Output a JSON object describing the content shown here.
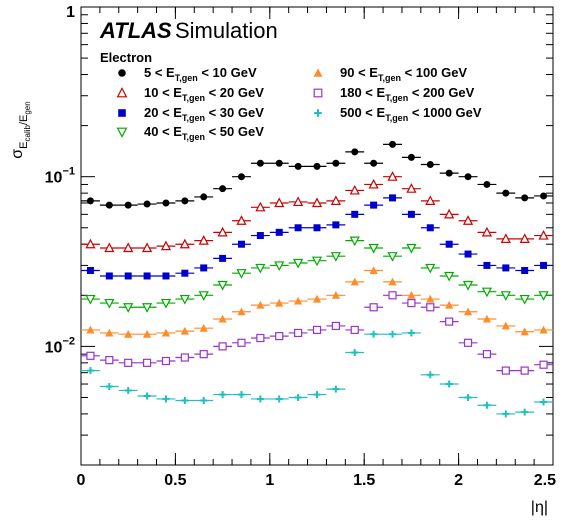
{
  "chart_data": {
    "type": "scatter",
    "title": "",
    "annotation": {
      "experiment": "ATLAS",
      "label": "Simulation",
      "particle": "Electron"
    },
    "xlabel": "|η|",
    "ylabel": "σ_{E_calib}/E_gen",
    "ylabel_main": "σ",
    "ylabel_sub": "E",
    "ylabel_subsub": "calib",
    "ylabel_over": "/E",
    "ylabel_gen": "gen",
    "xlim": [
      0,
      2.5
    ],
    "ylim": [
      0.002,
      1
    ],
    "yscale": "log",
    "x_ticks": [
      "0",
      "0.5",
      "1",
      "1.5",
      "2",
      "2.5"
    ],
    "y_ticks": [
      {
        "value": 1,
        "label": "1"
      },
      {
        "value": 0.1,
        "label": "10",
        "exp": "−1"
      },
      {
        "value": 0.01,
        "label": "10",
        "exp": "−2"
      }
    ],
    "x_bin_half_width": 0.05,
    "x": [
      0.05,
      0.15,
      0.25,
      0.35,
      0.45,
      0.55,
      0.65,
      0.75,
      0.85,
      0.95,
      1.05,
      1.15,
      1.25,
      1.35,
      1.45,
      1.55,
      1.65,
      1.75,
      1.85,
      1.95,
      2.05,
      2.15,
      2.25,
      2.35,
      2.45
    ],
    "series": [
      {
        "name": "5 < E_T,gen < 10 GeV",
        "prefix": "5 < E",
        "low": "5",
        "high": "10",
        "marker": "circle",
        "color": "#000000",
        "values": [
          0.072,
          0.068,
          0.068,
          0.069,
          0.07,
          0.072,
          0.076,
          0.085,
          0.1,
          0.12,
          0.12,
          0.115,
          0.115,
          0.12,
          0.14,
          0.12,
          0.155,
          0.13,
          0.118,
          0.105,
          0.1,
          0.09,
          0.08,
          0.075,
          0.077
        ]
      },
      {
        "name": "10 < E_T,gen < 20 GeV",
        "prefix": "10 < E",
        "low": "10",
        "high": "20",
        "marker": "triangle-up-open",
        "color": "#cc0000",
        "values": [
          0.04,
          0.038,
          0.038,
          0.038,
          0.039,
          0.04,
          0.042,
          0.047,
          0.055,
          0.066,
          0.07,
          0.071,
          0.07,
          0.072,
          0.083,
          0.09,
          0.1,
          0.085,
          0.072,
          0.06,
          0.055,
          0.047,
          0.043,
          0.043,
          0.045
        ]
      },
      {
        "name": "20 < E_T,gen < 30 GeV",
        "prefix": "20 < E",
        "low": "20",
        "high": "30",
        "marker": "square",
        "color": "#0000cc",
        "values": [
          0.028,
          0.026,
          0.026,
          0.026,
          0.026,
          0.027,
          0.029,
          0.033,
          0.04,
          0.045,
          0.047,
          0.05,
          0.05,
          0.052,
          0.06,
          0.068,
          0.075,
          0.06,
          0.05,
          0.04,
          0.035,
          0.03,
          0.029,
          0.028,
          0.03
        ]
      },
      {
        "name": "40 < E_T,gen < 50 GeV",
        "prefix": "40 < E",
        "low": "40",
        "high": "50",
        "marker": "triangle-down-open",
        "color": "#00aa00",
        "values": [
          0.019,
          0.018,
          0.017,
          0.017,
          0.018,
          0.019,
          0.02,
          0.023,
          0.027,
          0.029,
          0.03,
          0.031,
          0.032,
          0.034,
          0.042,
          0.038,
          0.034,
          0.038,
          0.029,
          0.026,
          0.023,
          0.021,
          0.02,
          0.019,
          0.02
        ]
      },
      {
        "name": "90 < E_T,gen < 100 GeV",
        "prefix": "90 < E",
        "low": "90",
        "high": "100",
        "marker": "triangle-up",
        "color": "#ff8c2a",
        "values": [
          0.0125,
          0.012,
          0.0118,
          0.0118,
          0.012,
          0.0123,
          0.0128,
          0.0145,
          0.016,
          0.0175,
          0.018,
          0.0185,
          0.019,
          0.02,
          0.024,
          0.028,
          0.024,
          0.02,
          0.019,
          0.0175,
          0.016,
          0.0145,
          0.0132,
          0.0122,
          0.0125
        ]
      },
      {
        "name": "180 < E_T,gen < 200 GeV",
        "prefix": "180 < E",
        "low": "180",
        "high": "200",
        "marker": "square-open",
        "color": "#9933cc",
        "values": [
          0.0088,
          0.0083,
          0.008,
          0.008,
          0.0082,
          0.0086,
          0.009,
          0.01,
          0.0105,
          0.0112,
          0.0115,
          0.012,
          0.0125,
          0.0132,
          0.0125,
          0.017,
          0.02,
          0.018,
          0.017,
          0.014,
          0.0105,
          0.009,
          0.0072,
          0.0072,
          0.0078
        ]
      },
      {
        "name": "500 < E_T,gen < 1000 GeV",
        "prefix": "500 < E",
        "low": "500",
        "high": "1000",
        "marker": "plus",
        "color": "#1fbfbf",
        "values": [
          0.0072,
          0.0058,
          0.0055,
          0.0051,
          0.0049,
          0.0048,
          0.0048,
          0.0052,
          0.0052,
          0.0049,
          0.0049,
          0.005,
          0.0052,
          0.0056,
          0.0092,
          0.0118,
          0.0118,
          0.012,
          0.0068,
          0.006,
          0.005,
          0.0045,
          0.004,
          0.0041,
          0.0047
        ]
      }
    ],
    "legend_placement": "top-left, two columns"
  }
}
